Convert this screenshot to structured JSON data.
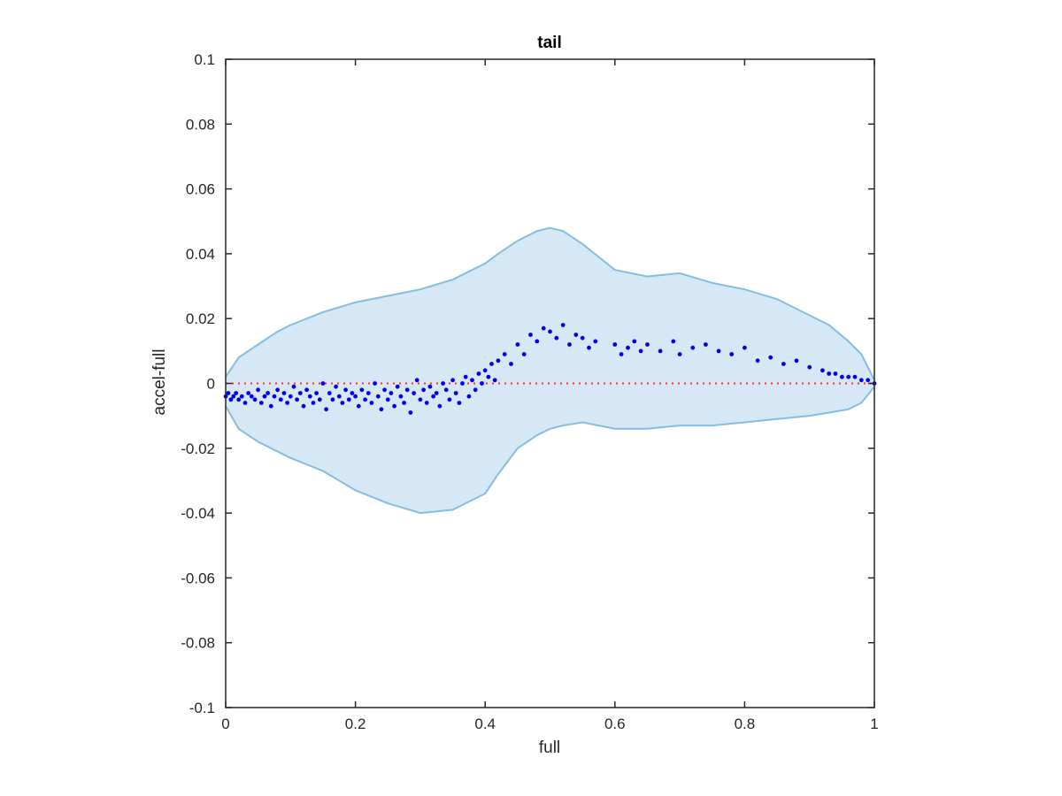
{
  "chart_data": {
    "type": "scatter",
    "title": "tail",
    "xlabel": "full",
    "ylabel": "accel-full",
    "xlim": [
      0,
      1
    ],
    "ylim": [
      -0.1,
      0.1
    ],
    "xticks": [
      0,
      0.2,
      0.4,
      0.6,
      0.8,
      1
    ],
    "xtick_labels": [
      "0",
      "0.2",
      "0.4",
      "0.6",
      "0.8",
      "1"
    ],
    "yticks": [
      -0.1,
      -0.08,
      -0.06,
      -0.04,
      -0.02,
      0,
      0.02,
      0.04,
      0.06,
      0.08,
      0.1
    ],
    "ytick_labels": [
      "-0.1",
      "-0.08",
      "-0.06",
      "-0.04",
      "-0.02",
      "0",
      "0.02",
      "0.04",
      "0.06",
      "0.08",
      "0.1"
    ],
    "grid": false,
    "colors": {
      "band_fill": "#d6e8f5",
      "band_edge": "#84bde0",
      "points": "#0000ee",
      "zero_line": "#ff2a2a",
      "axes": "#262626"
    },
    "band": {
      "x": [
        0,
        0.02,
        0.05,
        0.08,
        0.1,
        0.15,
        0.2,
        0.25,
        0.3,
        0.35,
        0.38,
        0.4,
        0.42,
        0.45,
        0.48,
        0.5,
        0.52,
        0.55,
        0.6,
        0.65,
        0.7,
        0.75,
        0.8,
        0.85,
        0.9,
        0.93,
        0.96,
        0.98,
        1.0
      ],
      "upper": [
        0.002,
        0.008,
        0.012,
        0.016,
        0.018,
        0.022,
        0.025,
        0.027,
        0.029,
        0.032,
        0.035,
        0.037,
        0.04,
        0.044,
        0.047,
        0.048,
        0.047,
        0.043,
        0.035,
        0.033,
        0.034,
        0.031,
        0.029,
        0.026,
        0.021,
        0.018,
        0.013,
        0.009,
        0.001
      ],
      "lower": [
        -0.007,
        -0.014,
        -0.018,
        -0.021,
        -0.023,
        -0.027,
        -0.033,
        -0.037,
        -0.04,
        -0.039,
        -0.036,
        -0.034,
        -0.028,
        -0.02,
        -0.016,
        -0.014,
        -0.013,
        -0.012,
        -0.014,
        -0.014,
        -0.013,
        -0.013,
        -0.012,
        -0.011,
        -0.01,
        -0.009,
        -0.008,
        -0.006,
        -0.001
      ]
    },
    "points": {
      "x": [
        0.0,
        0.004,
        0.008,
        0.012,
        0.016,
        0.02,
        0.025,
        0.03,
        0.035,
        0.04,
        0.045,
        0.05,
        0.055,
        0.06,
        0.065,
        0.07,
        0.075,
        0.08,
        0.085,
        0.09,
        0.095,
        0.1,
        0.105,
        0.11,
        0.115,
        0.12,
        0.125,
        0.13,
        0.135,
        0.14,
        0.145,
        0.15,
        0.155,
        0.16,
        0.165,
        0.17,
        0.175,
        0.18,
        0.185,
        0.19,
        0.195,
        0.2,
        0.205,
        0.21,
        0.215,
        0.22,
        0.225,
        0.23,
        0.235,
        0.24,
        0.245,
        0.25,
        0.255,
        0.26,
        0.265,
        0.27,
        0.275,
        0.28,
        0.285,
        0.29,
        0.295,
        0.3,
        0.305,
        0.31,
        0.315,
        0.32,
        0.325,
        0.33,
        0.335,
        0.34,
        0.345,
        0.35,
        0.355,
        0.36,
        0.365,
        0.37,
        0.375,
        0.38,
        0.385,
        0.39,
        0.395,
        0.4,
        0.405,
        0.41,
        0.415,
        0.42,
        0.43,
        0.44,
        0.45,
        0.46,
        0.47,
        0.48,
        0.49,
        0.5,
        0.51,
        0.52,
        0.53,
        0.54,
        0.55,
        0.56,
        0.57,
        0.6,
        0.61,
        0.62,
        0.63,
        0.64,
        0.65,
        0.67,
        0.69,
        0.7,
        0.72,
        0.74,
        0.76,
        0.78,
        0.8,
        0.82,
        0.84,
        0.86,
        0.88,
        0.9,
        0.92,
        0.93,
        0.94,
        0.95,
        0.96,
        0.97,
        0.98,
        0.99,
        1.0
      ],
      "y": [
        -0.004,
        -0.003,
        -0.005,
        -0.004,
        -0.003,
        -0.005,
        -0.004,
        -0.006,
        -0.003,
        -0.004,
        -0.005,
        -0.002,
        -0.006,
        -0.004,
        -0.003,
        -0.007,
        -0.004,
        -0.002,
        -0.005,
        -0.003,
        -0.006,
        -0.004,
        -0.001,
        -0.005,
        -0.003,
        -0.007,
        -0.002,
        -0.004,
        -0.006,
        -0.003,
        -0.005,
        0.0,
        -0.008,
        -0.003,
        -0.005,
        -0.001,
        -0.004,
        -0.006,
        -0.002,
        -0.005,
        -0.003,
        -0.004,
        -0.007,
        -0.002,
        -0.005,
        -0.003,
        -0.006,
        0.0,
        -0.004,
        -0.008,
        -0.002,
        -0.005,
        -0.003,
        -0.007,
        -0.001,
        -0.004,
        -0.006,
        -0.002,
        -0.009,
        -0.003,
        0.001,
        -0.005,
        -0.002,
        -0.006,
        -0.001,
        -0.004,
        -0.003,
        -0.007,
        0.0,
        -0.002,
        -0.005,
        0.001,
        -0.003,
        -0.006,
        0.0,
        0.002,
        -0.004,
        0.001,
        -0.002,
        0.003,
        0.0,
        0.004,
        0.002,
        0.006,
        0.001,
        0.007,
        0.009,
        0.006,
        0.012,
        0.009,
        0.015,
        0.013,
        0.017,
        0.016,
        0.014,
        0.018,
        0.012,
        0.015,
        0.014,
        0.011,
        0.013,
        0.012,
        0.009,
        0.011,
        0.013,
        0.01,
        0.012,
        0.01,
        0.013,
        0.009,
        0.011,
        0.012,
        0.01,
        0.009,
        0.011,
        0.007,
        0.008,
        0.006,
        0.007,
        0.005,
        0.004,
        0.003,
        0.003,
        0.002,
        0.002,
        0.002,
        0.001,
        0.001,
        0.0
      ]
    },
    "zero_line": 0
  }
}
